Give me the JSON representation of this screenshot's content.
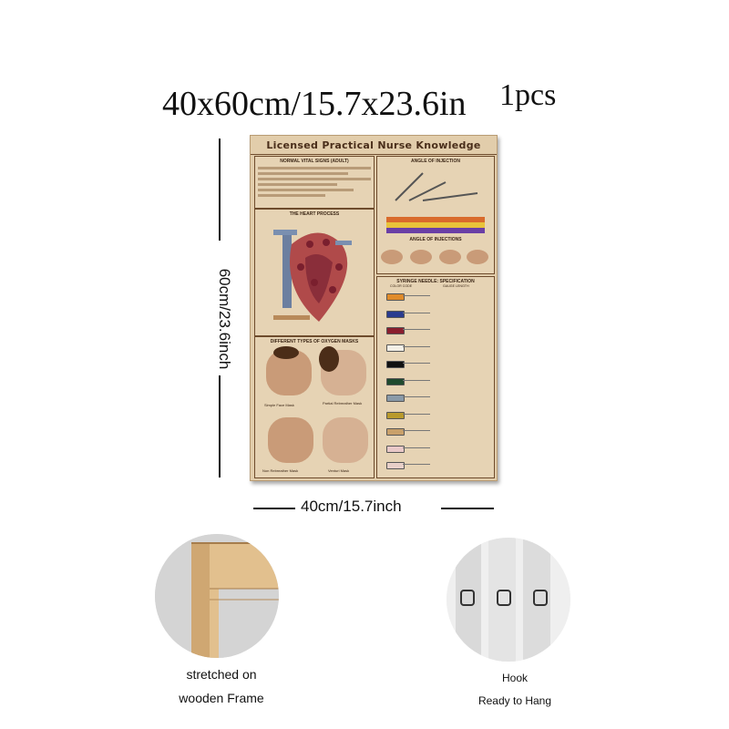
{
  "headline": {
    "size": "40x60cm/15.7x23.6in",
    "quantity": "1pcs"
  },
  "dimensions": {
    "height": "60cm/23.6inch",
    "width": "40cm/15.7inch"
  },
  "poster": {
    "title": "Licensed Practical Nurse Knowledge",
    "panels": {
      "vitals": "NORMAL VITAL SIGNS (ADULT)",
      "angle": "ANGLE OF INJECTION",
      "angle_sub": "ANGLE OF INJECTIONS",
      "heart": "THE HEART PROCESS",
      "masks": "DIFFERENT TYPES OF OXYGEN MASKS",
      "syringe": "SYRINGE NEEDLE: SPECIFICATION"
    },
    "syringe_headers": [
      "COLOR CODE",
      "GAUGE LENGTH"
    ],
    "mask_labels": [
      "Simple Face Mask",
      "Partial Rebreather Mask",
      "Non Rebreather Mask",
      "Venturi Mask"
    ],
    "needle_colors": [
      "#e08b2a",
      "#2a3b8f",
      "#8a1e2e",
      "#f3efe6",
      "#111111",
      "#1f4a2e",
      "#8a9aa8",
      "#b99a2c",
      "#c9a06a",
      "#e9c8c8",
      "#e8cfc8"
    ]
  },
  "features": [
    {
      "caption_line1": "stretched on",
      "caption_line2": "wooden Frame"
    },
    {
      "caption_line1": "Hook",
      "caption_line2": "Ready to Hang"
    }
  ]
}
